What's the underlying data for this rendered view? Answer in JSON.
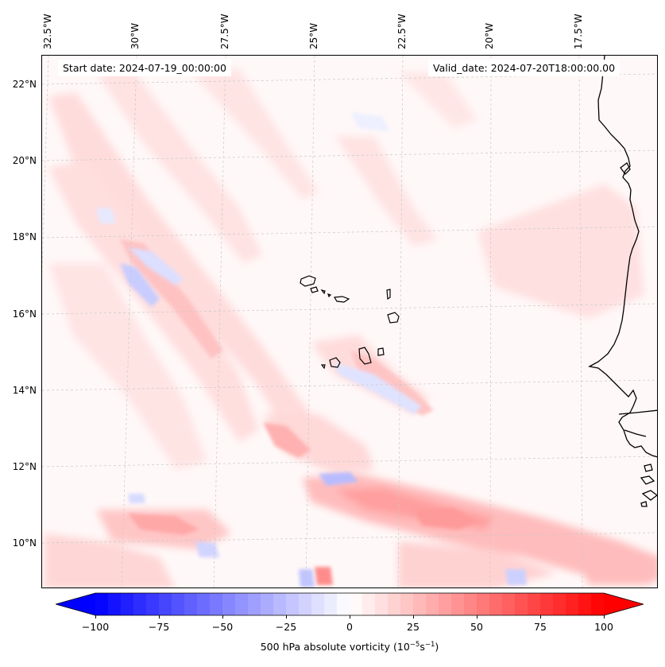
{
  "header": {
    "start_date": "Start date: 2024-07-19_00:00:00",
    "valid_date": "Valid_date: 2024-07-20T18:00:00.00"
  },
  "map": {
    "lon_labels": [
      "32.5°W",
      "30°W",
      "27.5°W",
      "25°W",
      "22.5°W",
      "20°W",
      "17.5°W"
    ],
    "lat_labels": [
      "22°N",
      "20°N",
      "18°N",
      "16°N",
      "14°N",
      "12°N",
      "10°N"
    ],
    "colors": {
      "coastline": "#000000",
      "gridline": "#c8c8c8",
      "field_background": "#fff8f8"
    },
    "field": "500 hPa absolute vorticity",
    "regions": [
      "Cabo Verde islands",
      "West African coast (Senegal / Gambia / Guinea-Bissau)"
    ]
  },
  "colorbar": {
    "ticks": [
      "−100",
      "−75",
      "−50",
      "−25",
      "0",
      "25",
      "50",
      "75",
      "100"
    ],
    "label_main": "500 hPa absolute vorticity (10",
    "label_exp1": "−5",
    "label_mid": "s",
    "label_exp2": "−1",
    "label_end": ")",
    "cmap": "bwr",
    "range": [
      -100,
      100
    ],
    "levels": 41,
    "extend": "both"
  }
}
